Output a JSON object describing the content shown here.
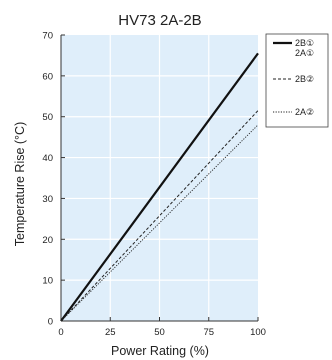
{
  "chart_data": {
    "type": "line",
    "title": "HV73 2A-2B",
    "xlabel": "Power Rating (%)",
    "ylabel": "Temperature Rise (°C)",
    "xlim": [
      0,
      100
    ],
    "ylim": [
      0,
      70
    ],
    "x_ticks": [
      "0",
      "25",
      "50",
      "75",
      "100"
    ],
    "y_ticks": [
      "0",
      "10",
      "20",
      "30",
      "40",
      "50",
      "60",
      "70"
    ],
    "grid": true,
    "legend_position": "top-right, outside plot",
    "series": [
      {
        "name": "2B①\n2A①",
        "x": [
          0,
          100
        ],
        "y": [
          0,
          65.5
        ],
        "style": "solid",
        "color": "#111111"
      },
      {
        "name": "2B②",
        "x": [
          0,
          100
        ],
        "y": [
          0,
          51.5
        ],
        "style": "dashed",
        "color": "#222222"
      },
      {
        "name": "2A②",
        "x": [
          0,
          100
        ],
        "y": [
          0,
          48
        ],
        "style": "dotted",
        "color": "#222222"
      }
    ],
    "colors": {
      "plot_background": "#dfeefa",
      "grid": "#ffffff",
      "axis": "#333333"
    }
  }
}
